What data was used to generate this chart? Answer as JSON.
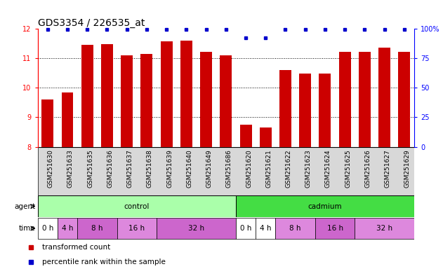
{
  "title": "GDS3354 / 226535_at",
  "samples": [
    "GSM251630",
    "GSM251633",
    "GSM251635",
    "GSM251636",
    "GSM251637",
    "GSM251638",
    "GSM251639",
    "GSM251640",
    "GSM251649",
    "GSM251686",
    "GSM251620",
    "GSM251621",
    "GSM251622",
    "GSM251623",
    "GSM251624",
    "GSM251625",
    "GSM251626",
    "GSM251627",
    "GSM251629"
  ],
  "bar_values": [
    9.6,
    9.85,
    11.45,
    11.47,
    11.1,
    11.13,
    11.57,
    11.58,
    11.2,
    11.1,
    8.75,
    8.65,
    10.6,
    10.48,
    10.48,
    11.2,
    11.2,
    11.35,
    11.22
  ],
  "percentile_values": [
    99,
    99,
    99,
    99,
    99,
    99,
    99,
    99,
    99,
    99,
    92,
    92,
    99,
    99,
    99,
    99,
    99,
    99,
    99
  ],
  "ylim_left": [
    8,
    12
  ],
  "ylim_right": [
    0,
    100
  ],
  "yticks_left": [
    8,
    9,
    10,
    11,
    12
  ],
  "yticks_right": [
    0,
    25,
    50,
    75,
    100
  ],
  "bar_color": "#cc0000",
  "dot_color": "#0000cc",
  "bar_width": 0.6,
  "background_color": "#ffffff",
  "control_color": "#aaffaa",
  "cadmium_color": "#44dd44",
  "time_groups": [
    {
      "label": "0 h",
      "indices": [
        0
      ],
      "color": "#ffffff"
    },
    {
      "label": "4 h",
      "indices": [
        1
      ],
      "color": "#dd88dd"
    },
    {
      "label": "8 h",
      "indices": [
        2,
        3
      ],
      "color": "#cc66cc"
    },
    {
      "label": "16 h",
      "indices": [
        4,
        5
      ],
      "color": "#dd88dd"
    },
    {
      "label": "32 h",
      "indices": [
        6,
        7,
        8,
        9
      ],
      "color": "#cc66cc"
    },
    {
      "label": "0 h",
      "indices": [
        10
      ],
      "color": "#ffffff"
    },
    {
      "label": "4 h",
      "indices": [
        11
      ],
      "color": "#ffffff"
    },
    {
      "label": "8 h",
      "indices": [
        12,
        13
      ],
      "color": "#dd88dd"
    },
    {
      "label": "16 h",
      "indices": [
        14,
        15
      ],
      "color": "#cc66cc"
    },
    {
      "label": "32 h",
      "indices": [
        16,
        17,
        18
      ],
      "color": "#dd88dd"
    }
  ],
  "legend_items": [
    {
      "label": "transformed count",
      "color": "#cc0000"
    },
    {
      "label": "percentile rank within the sample",
      "color": "#0000cc"
    }
  ],
  "title_fontsize": 10,
  "tick_fontsize": 7,
  "sample_fontsize": 6.5,
  "row_fontsize": 7.5,
  "legend_fontsize": 7.5
}
